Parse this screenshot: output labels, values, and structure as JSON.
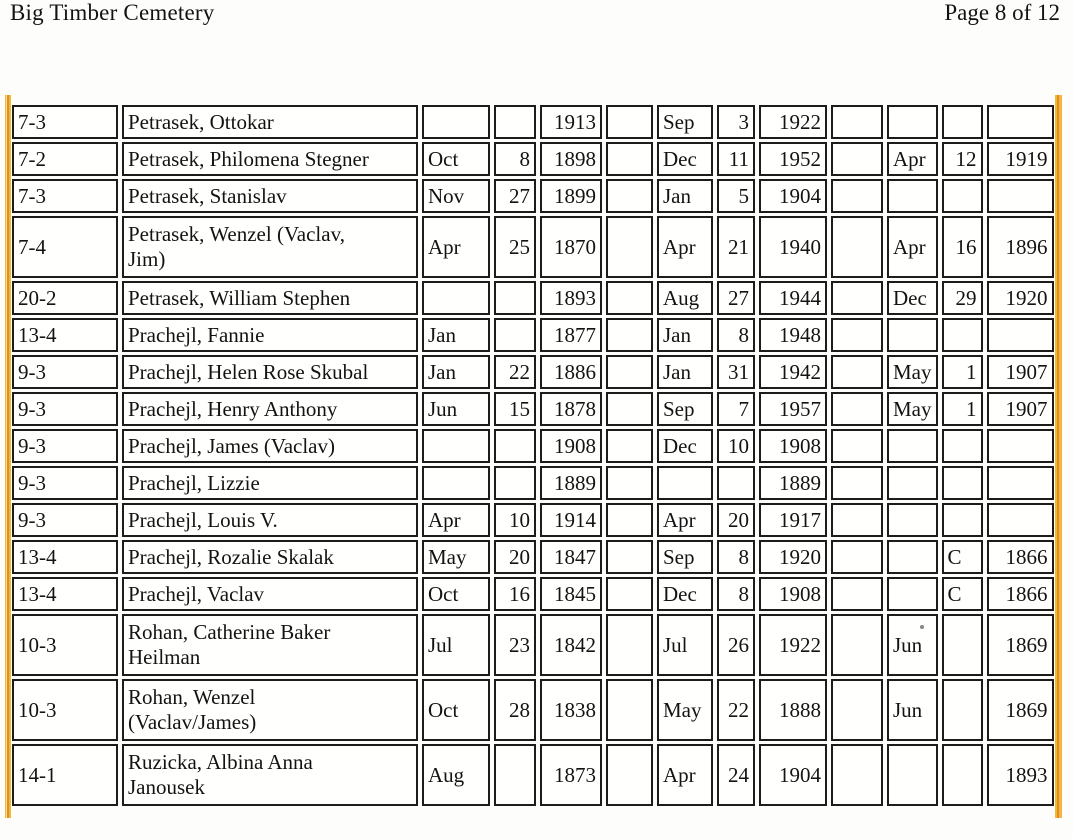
{
  "header": {
    "title": "Big Timber Cemetery",
    "page_label": "Page 8 of 12"
  },
  "colors": {
    "edge_stripe_light": "#f6b440",
    "edge_stripe_dark": "#dd9118",
    "edge_stripe_pale": "#fcdfa0"
  },
  "table": {
    "rows": [
      {
        "tall": false,
        "cells": [
          "7-3",
          "Petrasek, Ottokar",
          "",
          "",
          "1913",
          "",
          "Sep",
          "3",
          "1922",
          "",
          "",
          "",
          ""
        ]
      },
      {
        "tall": false,
        "cells": [
          "7-2",
          "Petrasek, Philomena Stegner",
          "Oct",
          "8",
          "1898",
          "",
          "Dec",
          "11",
          "1952",
          "",
          "Apr",
          "12",
          "1919"
        ]
      },
      {
        "tall": false,
        "cells": [
          "7-3",
          "Petrasek, Stanislav",
          "Nov",
          "27",
          "1899",
          "",
          "Jan",
          "5",
          "1904",
          "",
          "",
          "",
          ""
        ]
      },
      {
        "tall": true,
        "cells": [
          "7-4",
          "Petrasek, Wenzel (Vaclav,\nJim)",
          "Apr",
          "25",
          "1870",
          "",
          "Apr",
          "21",
          "1940",
          "",
          "Apr",
          "16",
          "1896"
        ]
      },
      {
        "tall": false,
        "cells": [
          "20-2",
          "Petrasek, William Stephen",
          "",
          "",
          "1893",
          "",
          "Aug",
          "27",
          "1944",
          "",
          "Dec",
          "29",
          "1920"
        ]
      },
      {
        "tall": false,
        "cells": [
          "13-4",
          "Prachejl, Fannie",
          "Jan",
          "",
          "1877",
          "",
          "Jan",
          "8",
          "1948",
          "",
          "",
          "",
          ""
        ]
      },
      {
        "tall": false,
        "cells": [
          "9-3",
          "Prachejl, Helen Rose Skubal",
          "Jan",
          "22",
          "1886",
          "",
          "Jan",
          "31",
          "1942",
          "",
          "May",
          "1",
          "1907"
        ]
      },
      {
        "tall": false,
        "cells": [
          "9-3",
          "Prachejl, Henry Anthony",
          "Jun",
          "15",
          "1878",
          "",
          "Sep",
          "7",
          "1957",
          "",
          "May",
          "1",
          "1907"
        ]
      },
      {
        "tall": false,
        "cells": [
          "9-3",
          "Prachejl, James (Vaclav)",
          "",
          "",
          "1908",
          "",
          "Dec",
          "10",
          "1908",
          "",
          "",
          "",
          ""
        ]
      },
      {
        "tall": false,
        "cells": [
          "9-3",
          "Prachejl, Lizzie",
          "",
          "",
          "1889",
          "",
          "",
          "",
          "1889",
          "",
          "",
          "",
          ""
        ]
      },
      {
        "tall": false,
        "cells": [
          "9-3",
          "Prachejl, Louis V.",
          "Apr",
          "10",
          "1914",
          "",
          "Apr",
          "20",
          "1917",
          "",
          "",
          "",
          ""
        ]
      },
      {
        "tall": false,
        "cells": [
          "13-4",
          "Prachejl, Rozalie Skalak",
          "May",
          "20",
          "1847",
          "",
          "Sep",
          "8",
          "1920",
          "",
          "",
          "C",
          "1866"
        ]
      },
      {
        "tall": false,
        "cells": [
          "13-4",
          "Prachejl, Vaclav",
          "Oct",
          "16",
          "1845",
          "",
          "Dec",
          "8",
          "1908",
          "",
          "",
          "C",
          "1866"
        ]
      },
      {
        "tall": true,
        "cells": [
          "10-3",
          "Rohan, Catherine Baker\nHeilman",
          "Jul",
          "23",
          "1842",
          "",
          "Jul",
          "26",
          "1922",
          "",
          "Jun",
          "",
          "1869"
        ]
      },
      {
        "tall": true,
        "cells": [
          "10-3",
          "Rohan, Wenzel\n(Vaclav/James)",
          "Oct",
          "28",
          "1838",
          "",
          "May",
          "22",
          "1888",
          "",
          "Jun",
          "",
          "1869"
        ]
      },
      {
        "tall": true,
        "cells": [
          "14-1",
          "Ruzicka, Albina Anna\nJanousek",
          "Aug",
          "",
          "1873",
          "",
          "Apr",
          "24",
          "1904",
          "",
          "",
          "",
          "1893"
        ]
      }
    ]
  }
}
